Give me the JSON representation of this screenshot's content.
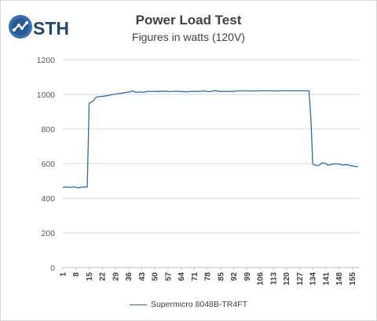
{
  "logo": {
    "text": "STH"
  },
  "chart_data": {
    "type": "line",
    "title": "Power Load Test",
    "subtitle": "Figures in watts (120V)",
    "xlabel": "",
    "ylabel": "",
    "ylim": [
      0,
      1200
    ],
    "yticks": [
      0,
      200,
      400,
      600,
      800,
      1000,
      1200
    ],
    "grid": true,
    "legend_position": "bottom",
    "xlim": [
      1,
      159
    ],
    "x_tick_labels": [
      "1",
      "8",
      "15",
      "22",
      "29",
      "36",
      "43",
      "50",
      "57",
      "64",
      "71",
      "78",
      "85",
      "92",
      "99",
      "106",
      "113",
      "120",
      "127",
      "134",
      "141",
      "148",
      "155"
    ],
    "series": [
      {
        "name": "Supermicro 8048B-TR4FT",
        "color": "#2e6ba8",
        "points": [
          [
            1,
            462
          ],
          [
            3,
            465
          ],
          [
            5,
            463
          ],
          [
            7,
            466
          ],
          [
            9,
            460
          ],
          [
            11,
            464
          ],
          [
            13,
            465
          ],
          [
            14,
            465
          ],
          [
            15,
            950
          ],
          [
            16,
            955
          ],
          [
            17,
            960
          ],
          [
            18,
            975
          ],
          [
            19,
            985
          ],
          [
            21,
            988
          ],
          [
            23,
            990
          ],
          [
            25,
            993
          ],
          [
            27,
            998
          ],
          [
            29,
            1002
          ],
          [
            31,
            1005
          ],
          [
            33,
            1008
          ],
          [
            35,
            1012
          ],
          [
            37,
            1015
          ],
          [
            38,
            1020
          ],
          [
            40,
            1012
          ],
          [
            42,
            1014
          ],
          [
            44,
            1012
          ],
          [
            46,
            1018
          ],
          [
            48,
            1016
          ],
          [
            50,
            1018
          ],
          [
            52,
            1017
          ],
          [
            55,
            1019
          ],
          [
            58,
            1016
          ],
          [
            61,
            1018
          ],
          [
            64,
            1017
          ],
          [
            67,
            1015
          ],
          [
            70,
            1018
          ],
          [
            73,
            1017
          ],
          [
            76,
            1020
          ],
          [
            79,
            1016
          ],
          [
            82,
            1022
          ],
          [
            85,
            1017
          ],
          [
            88,
            1018
          ],
          [
            91,
            1017
          ],
          [
            94,
            1020
          ],
          [
            97,
            1021
          ],
          [
            100,
            1020
          ],
          [
            103,
            1020
          ],
          [
            106,
            1021
          ],
          [
            110,
            1021
          ],
          [
            114,
            1020
          ],
          [
            118,
            1021
          ],
          [
            122,
            1021
          ],
          [
            126,
            1021
          ],
          [
            130,
            1021
          ],
          [
            132,
            1020
          ],
          [
            133,
            860
          ],
          [
            134,
            598
          ],
          [
            135,
            592
          ],
          [
            137,
            588
          ],
          [
            139,
            605
          ],
          [
            141,
            600
          ],
          [
            142,
            592
          ],
          [
            144,
            595
          ],
          [
            146,
            600
          ],
          [
            148,
            597
          ],
          [
            150,
            592
          ],
          [
            152,
            594
          ],
          [
            154,
            588
          ],
          [
            156,
            585
          ],
          [
            158,
            582
          ]
        ]
      }
    ]
  }
}
